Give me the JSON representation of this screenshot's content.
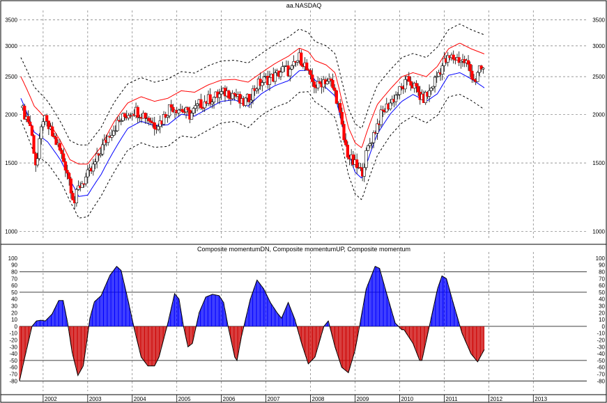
{
  "chart_data": [
    {
      "type": "candlestick",
      "title": "aa.NASDAQ",
      "y_scale": "log",
      "ylim": [
        950,
        3700
      ],
      "y_ticks": [
        1000,
        1500,
        2000,
        2500,
        3000,
        3500
      ],
      "y_tick_labels": [
        "1000",
        "1500",
        "2000",
        "2500",
        "3000",
        "3500"
      ],
      "x_range": [
        2001.47,
        2014.2
      ],
      "x_ticks": [
        2002,
        2003,
        2004,
        2005,
        2006,
        2007,
        2008,
        2009,
        2010,
        2011,
        2012,
        2013
      ],
      "x_tick_labels": [
        "2002",
        "2003",
        "2004",
        "2005",
        "2006",
        "2007",
        "2008",
        "2009",
        "2010",
        "2011",
        "2012",
        "2013"
      ],
      "grid": true,
      "colors": {
        "up": "#ffffff",
        "down": "#ff0000",
        "upper_band": "#ff0000",
        "lower_band": "#0000ff",
        "envelope": "#000000"
      },
      "price_path": [
        [
          2001.5,
          2080
        ],
        [
          2001.7,
          1900
        ],
        [
          2001.85,
          1450
        ],
        [
          2002.0,
          1960
        ],
        [
          2002.15,
          1820
        ],
        [
          2002.35,
          1640
        ],
        [
          2002.55,
          1420
        ],
        [
          2002.7,
          1180
        ],
        [
          2002.8,
          1300
        ],
        [
          2002.95,
          1370
        ],
        [
          2003.1,
          1440
        ],
        [
          2003.3,
          1620
        ],
        [
          2003.5,
          1790
        ],
        [
          2003.75,
          1940
        ],
        [
          2004.0,
          2050
        ],
        [
          2004.1,
          2040
        ],
        [
          2004.3,
          1990
        ],
        [
          2004.5,
          1880
        ],
        [
          2004.65,
          1920
        ],
        [
          2004.85,
          2100
        ],
        [
          2005.1,
          2060
        ],
        [
          2005.3,
          1990
        ],
        [
          2005.5,
          2120
        ],
        [
          2005.7,
          2180
        ],
        [
          2005.9,
          2230
        ],
        [
          2006.1,
          2280
        ],
        [
          2006.3,
          2260
        ],
        [
          2006.45,
          2120
        ],
        [
          2006.6,
          2190
        ],
        [
          2006.8,
          2380
        ],
        [
          2007.0,
          2460
        ],
        [
          2007.2,
          2500
        ],
        [
          2007.4,
          2620
        ],
        [
          2007.55,
          2570
        ],
        [
          2007.75,
          2800
        ],
        [
          2007.85,
          2720
        ],
        [
          2008.0,
          2450
        ],
        [
          2008.15,
          2350
        ],
        [
          2008.3,
          2460
        ],
        [
          2008.45,
          2420
        ],
        [
          2008.6,
          2180
        ],
        [
          2008.75,
          1720
        ],
        [
          2008.85,
          1560
        ],
        [
          2009.0,
          1480
        ],
        [
          2009.15,
          1410
        ],
        [
          2009.3,
          1650
        ],
        [
          2009.45,
          1820
        ],
        [
          2009.6,
          2010
        ],
        [
          2009.8,
          2150
        ],
        [
          2010.0,
          2300
        ],
        [
          2010.2,
          2450
        ],
        [
          2010.35,
          2340
        ],
        [
          2010.5,
          2180
        ],
        [
          2010.65,
          2260
        ],
        [
          2010.85,
          2530
        ],
        [
          2011.0,
          2720
        ],
        [
          2011.15,
          2800
        ],
        [
          2011.3,
          2780
        ],
        [
          2011.5,
          2720
        ],
        [
          2011.6,
          2560
        ],
        [
          2011.7,
          2440
        ],
        [
          2011.8,
          2600
        ],
        [
          2011.9,
          2620
        ]
      ],
      "upper_band": [
        [
          2001.5,
          2500
        ],
        [
          2001.8,
          2100
        ],
        [
          2002.1,
          1930
        ],
        [
          2002.4,
          1700
        ],
        [
          2002.6,
          1530
        ],
        [
          2002.8,
          1490
        ],
        [
          2003.0,
          1490
        ],
        [
          2003.3,
          1650
        ],
        [
          2003.6,
          1920
        ],
        [
          2003.9,
          2140
        ],
        [
          2004.2,
          2220
        ],
        [
          2004.5,
          2160
        ],
        [
          2004.8,
          2200
        ],
        [
          2005.1,
          2300
        ],
        [
          2005.4,
          2280
        ],
        [
          2005.7,
          2380
        ],
        [
          2006.0,
          2450
        ],
        [
          2006.3,
          2460
        ],
        [
          2006.6,
          2420
        ],
        [
          2006.9,
          2560
        ],
        [
          2007.2,
          2700
        ],
        [
          2007.5,
          2820
        ],
        [
          2007.75,
          2960
        ],
        [
          2007.95,
          2900
        ],
        [
          2008.1,
          2750
        ],
        [
          2008.35,
          2680
        ],
        [
          2008.55,
          2560
        ],
        [
          2008.7,
          2180
        ],
        [
          2008.85,
          1850
        ],
        [
          2009.0,
          1690
        ],
        [
          2009.15,
          1640
        ],
        [
          2009.3,
          1850
        ],
        [
          2009.5,
          2120
        ],
        [
          2009.8,
          2330
        ],
        [
          2010.05,
          2500
        ],
        [
          2010.3,
          2560
        ],
        [
          2010.6,
          2500
        ],
        [
          2010.85,
          2660
        ],
        [
          2011.1,
          2950
        ],
        [
          2011.35,
          3050
        ],
        [
          2011.6,
          2950
        ],
        [
          2011.9,
          2860
        ]
      ],
      "lower_band": [
        [
          2001.5,
          2200
        ],
        [
          2001.8,
          1800
        ],
        [
          2002.1,
          1700
        ],
        [
          2002.4,
          1520
        ],
        [
          2002.6,
          1360
        ],
        [
          2002.8,
          1230
        ],
        [
          2003.0,
          1240
        ],
        [
          2003.3,
          1400
        ],
        [
          2003.6,
          1620
        ],
        [
          2003.9,
          1840
        ],
        [
          2004.2,
          1920
        ],
        [
          2004.5,
          1870
        ],
        [
          2004.8,
          1880
        ],
        [
          2005.1,
          2000
        ],
        [
          2005.4,
          1980
        ],
        [
          2005.7,
          2070
        ],
        [
          2006.0,
          2160
        ],
        [
          2006.3,
          2180
        ],
        [
          2006.6,
          2100
        ],
        [
          2006.9,
          2260
        ],
        [
          2007.2,
          2370
        ],
        [
          2007.5,
          2440
        ],
        [
          2007.75,
          2590
        ],
        [
          2007.95,
          2600
        ],
        [
          2008.1,
          2450
        ],
        [
          2008.35,
          2340
        ],
        [
          2008.55,
          2230
        ],
        [
          2008.7,
          1900
        ],
        [
          2008.85,
          1590
        ],
        [
          2009.0,
          1420
        ],
        [
          2009.15,
          1370
        ],
        [
          2009.3,
          1540
        ],
        [
          2009.5,
          1780
        ],
        [
          2009.8,
          2010
        ],
        [
          2010.05,
          2160
        ],
        [
          2010.3,
          2250
        ],
        [
          2010.6,
          2160
        ],
        [
          2010.85,
          2260
        ],
        [
          2011.1,
          2520
        ],
        [
          2011.35,
          2560
        ],
        [
          2011.6,
          2470
        ],
        [
          2011.9,
          2340
        ]
      ],
      "envelope_offset": 0.12
    },
    {
      "type": "bar",
      "title": "Composite momentumDN, Composite momentumUP, Composite momentum",
      "ylim": [
        -95,
        105
      ],
      "y_ticks": [
        -80,
        -70,
        -60,
        -50,
        -40,
        -30,
        -20,
        -10,
        0,
        10,
        20,
        30,
        40,
        50,
        60,
        70,
        80,
        90,
        100
      ],
      "y_tick_labels": [
        "-80",
        "-70",
        "-60",
        "-50",
        "-40",
        "-30",
        "-20",
        "-10",
        "0",
        "10",
        "20",
        "30",
        "40",
        "50",
        "60",
        "70",
        "80",
        "90",
        "100"
      ],
      "reference_lines": [
        80,
        50,
        0,
        -50,
        -80
      ],
      "colors": {
        "up": "#0000ff",
        "down": "#cc0000",
        "line": "#000000"
      },
      "momentum": [
        [
          2001.47,
          -80
        ],
        [
          2001.6,
          -42
        ],
        [
          2001.75,
          0
        ],
        [
          2001.85,
          8
        ],
        [
          2001.95,
          9
        ],
        [
          2002.05,
          8
        ],
        [
          2002.2,
          18
        ],
        [
          2002.35,
          38
        ],
        [
          2002.45,
          38
        ],
        [
          2002.55,
          5
        ],
        [
          2002.65,
          -38
        ],
        [
          2002.78,
          -72
        ],
        [
          2002.9,
          -58
        ],
        [
          2002.98,
          -22
        ],
        [
          2003.05,
          12
        ],
        [
          2003.15,
          36
        ],
        [
          2003.3,
          45
        ],
        [
          2003.5,
          75
        ],
        [
          2003.65,
          88
        ],
        [
          2003.75,
          82
        ],
        [
          2003.9,
          40
        ],
        [
          2004.05,
          -5
        ],
        [
          2004.2,
          -45
        ],
        [
          2004.35,
          -58
        ],
        [
          2004.5,
          -58
        ],
        [
          2004.6,
          -45
        ],
        [
          2004.8,
          5
        ],
        [
          2004.95,
          48
        ],
        [
          2005.05,
          40
        ],
        [
          2005.15,
          0
        ],
        [
          2005.25,
          -30
        ],
        [
          2005.35,
          -25
        ],
        [
          2005.5,
          20
        ],
        [
          2005.65,
          43
        ],
        [
          2005.8,
          47
        ],
        [
          2005.95,
          45
        ],
        [
          2006.05,
          35
        ],
        [
          2006.15,
          0
        ],
        [
          2006.3,
          -45
        ],
        [
          2006.35,
          -50
        ],
        [
          2006.45,
          -15
        ],
        [
          2006.65,
          40
        ],
        [
          2006.8,
          68
        ],
        [
          2006.95,
          55
        ],
        [
          2007.1,
          35
        ],
        [
          2007.25,
          20
        ],
        [
          2007.35,
          12
        ],
        [
          2007.5,
          35
        ],
        [
          2007.65,
          10
        ],
        [
          2007.8,
          -25
        ],
        [
          2007.95,
          -55
        ],
        [
          2008.1,
          -45
        ],
        [
          2008.3,
          0
        ],
        [
          2008.4,
          8
        ],
        [
          2008.55,
          -30
        ],
        [
          2008.7,
          -60
        ],
        [
          2008.85,
          -68
        ],
        [
          2009.0,
          -35
        ],
        [
          2009.1,
          0
        ],
        [
          2009.25,
          55
        ],
        [
          2009.45,
          88
        ],
        [
          2009.55,
          85
        ],
        [
          2009.7,
          50
        ],
        [
          2009.9,
          5
        ],
        [
          2010.05,
          -5
        ],
        [
          2010.1,
          -5
        ],
        [
          2010.3,
          -25
        ],
        [
          2010.45,
          -50
        ],
        [
          2010.5,
          -50
        ],
        [
          2010.65,
          -5
        ],
        [
          2010.85,
          55
        ],
        [
          2010.95,
          74
        ],
        [
          2011.05,
          70
        ],
        [
          2011.2,
          35
        ],
        [
          2011.4,
          -10
        ],
        [
          2011.6,
          -40
        ],
        [
          2011.75,
          -52
        ],
        [
          2011.9,
          -34
        ]
      ]
    }
  ]
}
